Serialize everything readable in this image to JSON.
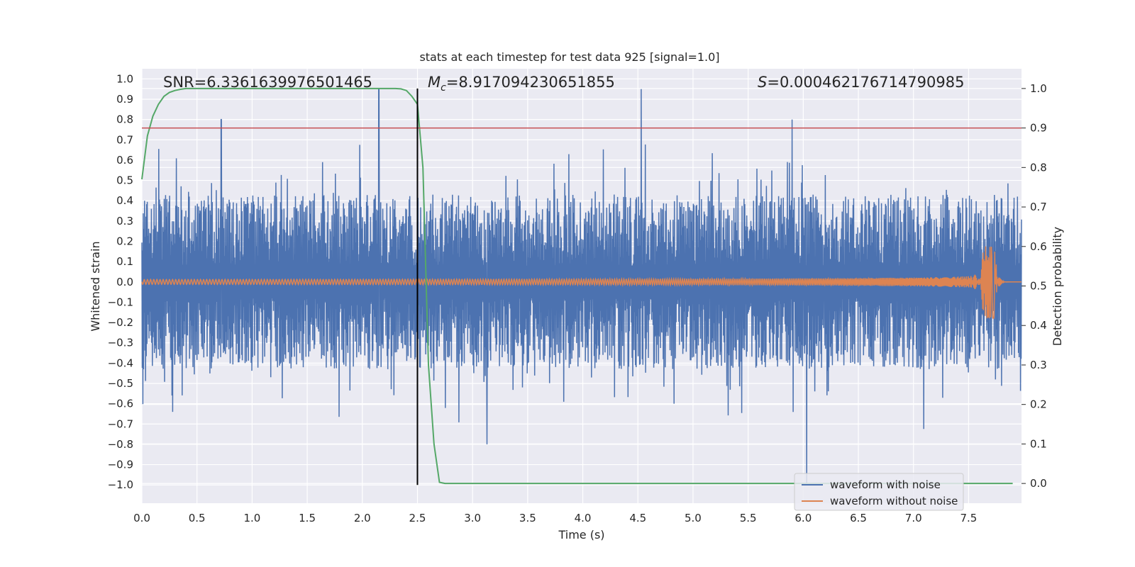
{
  "chart_data": {
    "type": "line",
    "title": "stats at each timestep for test data 925 [signal=1.0]",
    "xlabel": "Time (s)",
    "ylabel": "Whitened strain",
    "ylabel_right": "Detection probability",
    "xlim": [
      0.0,
      7.98
    ],
    "ylim": [
      -1.09,
      1.05
    ],
    "ylim_right": [
      -0.05,
      1.05
    ],
    "x_ticks": [
      "0.0",
      "0.5",
      "1.0",
      "1.5",
      "2.0",
      "2.5",
      "3.0",
      "3.5",
      "4.0",
      "4.5",
      "5.0",
      "5.5",
      "6.0",
      "6.5",
      "7.0",
      "7.5"
    ],
    "x_tick_values": [
      0.0,
      0.5,
      1.0,
      1.5,
      2.0,
      2.5,
      3.0,
      3.5,
      4.0,
      4.5,
      5.0,
      5.5,
      6.0,
      6.5,
      7.0,
      7.5
    ],
    "y_ticks": [
      "1.0",
      "0.9",
      "0.8",
      "0.7",
      "0.6",
      "0.5",
      "0.4",
      "0.3",
      "0.2",
      "0.1",
      "0.0",
      "−0.1",
      "−0.2",
      "−0.3",
      "−0.4",
      "−0.5",
      "−0.6",
      "−0.7",
      "−0.8",
      "−0.9",
      "−1.0"
    ],
    "y_tick_values": [
      1.0,
      0.9,
      0.8,
      0.7,
      0.6,
      0.5,
      0.4,
      0.3,
      0.2,
      0.1,
      0.0,
      -0.1,
      -0.2,
      -0.3,
      -0.4,
      -0.5,
      -0.6,
      -0.7,
      -0.8,
      -0.9,
      -1.0
    ],
    "y_right_ticks": [
      "1.0",
      "0.9",
      "0.8",
      "0.7",
      "0.6",
      "0.5",
      "0.4",
      "0.3",
      "0.2",
      "0.1",
      "0.0"
    ],
    "y_right_tick_values": [
      1.0,
      0.9,
      0.8,
      0.7,
      0.6,
      0.5,
      0.4,
      0.3,
      0.2,
      0.1,
      0.0
    ],
    "annotations": {
      "snr": "SNR=6.3361639976501465",
      "mc_symbol": "M",
      "mc_sub": "c",
      "mc_value": "=8.917094230651855",
      "s_symbol": "S",
      "s_value": "=0.000462176714790985"
    },
    "series": [
      {
        "name": "waveform with noise",
        "color": "#4c72b0",
        "kind": "noise",
        "envelope_typical": 0.35,
        "peak_examples": [
          {
            "x": 0.72,
            "y": 0.8
          },
          {
            "x": 2.15,
            "y": 0.95
          },
          {
            "x": 4.53,
            "y": 0.95
          },
          {
            "x": 5.9,
            "y": 0.8
          },
          {
            "x": 6.03,
            "y": -1.0
          },
          {
            "x": 3.13,
            "y": -0.8
          }
        ]
      },
      {
        "name": "waveform without noise",
        "color": "#dd8452",
        "kind": "chirp",
        "merger_time": 7.75,
        "peak_amplitude": 0.18,
        "initial_amplitude": 0.012
      },
      {
        "name": "detection probability",
        "color": "#55a868",
        "axis": "right",
        "x": [
          0.0,
          0.05,
          0.1,
          0.15,
          0.2,
          0.25,
          0.3,
          0.35,
          0.4,
          0.5,
          1.0,
          1.5,
          2.0,
          2.2,
          2.3,
          2.35,
          2.4,
          2.45,
          2.5,
          2.55,
          2.6,
          2.65,
          2.7,
          2.75,
          2.8,
          3.5,
          4.5,
          5.5,
          6.5,
          7.5,
          7.9
        ],
        "y": [
          0.77,
          0.88,
          0.93,
          0.96,
          0.98,
          0.99,
          0.995,
          0.998,
          1.0,
          1.0,
          1.0,
          1.0,
          1.0,
          1.0,
          1.0,
          0.999,
          0.995,
          0.98,
          0.96,
          0.8,
          0.3,
          0.1,
          0.003,
          0.0,
          0.0,
          0.0,
          0.0,
          0.0,
          0.0,
          0.0,
          0.0
        ]
      }
    ],
    "threshold": {
      "value_right": 0.9,
      "color": "#c44e52"
    },
    "marker_time": 2.5,
    "legend": {
      "placement": "bottom-right",
      "entries": [
        "waveform with noise",
        "waveform without noise"
      ]
    }
  }
}
